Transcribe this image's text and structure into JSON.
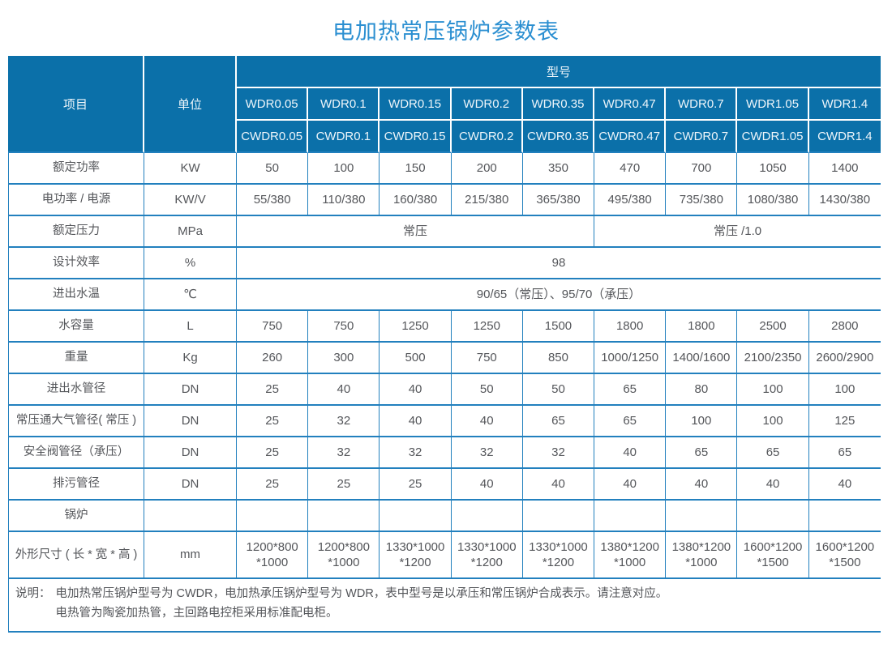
{
  "title": "电加热常压锅炉参数表",
  "colors": {
    "header_bg": "#0b70a9",
    "grid_border": "#2280be",
    "title_text": "#2b8fd1",
    "body_text": "#54565a",
    "header_text": "#edf5fa"
  },
  "table": {
    "item_header": "项目",
    "unit_header": "单位",
    "model_header": "型号",
    "wdr_models": [
      "WDR0.05",
      "WDR0.1",
      "WDR0.15",
      "WDR0.2",
      "WDR0.35",
      "WDR0.47",
      "WDR0.7",
      "WDR1.05",
      "WDR1.4"
    ],
    "cwdr_models": [
      "CWDR0.05",
      "CWDR0.1",
      "CWDR0.15",
      "CWDR0.2",
      "CWDR0.35",
      "CWDR0.47",
      "CWDR0.7",
      "CWDR1.05",
      "CWDR1.4"
    ],
    "rows": [
      {
        "label": "额定功率",
        "unit": "KW",
        "cells": [
          "50",
          "100",
          "150",
          "200",
          "350",
          "470",
          "700",
          "1050",
          "1400"
        ]
      },
      {
        "label": "电功率 / 电源",
        "unit": "KW/V",
        "cells": [
          "55/380",
          "110/380",
          "160/380",
          "215/380",
          "365/380",
          "495/380",
          "735/380",
          "1080/380",
          "1430/380"
        ]
      },
      {
        "label": "额定压力",
        "unit": "MPa",
        "spans": [
          {
            "text": "常压",
            "span": 5
          },
          {
            "text": "常压 /1.0",
            "span": 4
          }
        ]
      },
      {
        "label": "设计效率",
        "unit": "%",
        "spans": [
          {
            "text": "98",
            "span": 9
          }
        ]
      },
      {
        "label": "进出水温",
        "unit": "℃",
        "spans": [
          {
            "text": "90/65（常压）、95/70（承压）",
            "span": 9
          }
        ]
      },
      {
        "label": "水容量",
        "unit": "L",
        "cells": [
          "750",
          "750",
          "1250",
          "1250",
          "1500",
          "1800",
          "1800",
          "2500",
          "2800"
        ]
      },
      {
        "label": "重量",
        "unit": "Kg",
        "cells": [
          "260",
          "300",
          "500",
          "750",
          "850",
          "1000/1250",
          "1400/1600",
          "2100/2350",
          "2600/2900"
        ]
      },
      {
        "label": "进出水管径",
        "unit": "DN",
        "cells": [
          "25",
          "40",
          "40",
          "50",
          "50",
          "65",
          "80",
          "100",
          "100"
        ]
      },
      {
        "label": "常压通大气管径( 常压 )",
        "unit": "DN",
        "cells": [
          "25",
          "32",
          "40",
          "40",
          "65",
          "65",
          "100",
          "100",
          "125"
        ]
      },
      {
        "label": "安全阀管径（承压）",
        "unit": "DN",
        "cells": [
          "25",
          "32",
          "32",
          "32",
          "32",
          "40",
          "65",
          "65",
          "65"
        ]
      },
      {
        "label": "排污管径",
        "unit": "DN",
        "cells": [
          "25",
          "25",
          "25",
          "40",
          "40",
          "40",
          "40",
          "40",
          "40"
        ]
      },
      {
        "label": "锅炉",
        "unit": "",
        "cells": [
          "",
          "",
          "",
          "",
          "",
          "",
          "",
          "",
          ""
        ]
      },
      {
        "label": "外形尺寸 ( 长 * 宽 * 高 )",
        "unit": "mm",
        "tall": true,
        "cells": [
          "1200*800\n*1000",
          "1200*800\n*1000",
          "1330*1000\n*1200",
          "1330*1000\n*1200",
          "1330*1000\n*1200",
          "1380*1200\n*1000",
          "1380*1200\n*1000",
          "1600*1200\n*1500",
          "1600*1200\n*1500"
        ]
      }
    ],
    "note_label": "说明：",
    "note_lines": [
      "电加热常压锅炉型号为 CWDR，电加热承压锅炉型号为 WDR，表中型号是以承压和常压锅炉合成表示。请注意对应。",
      "电热管为陶瓷加热管，主回路电控柜采用标准配电柜。"
    ]
  }
}
